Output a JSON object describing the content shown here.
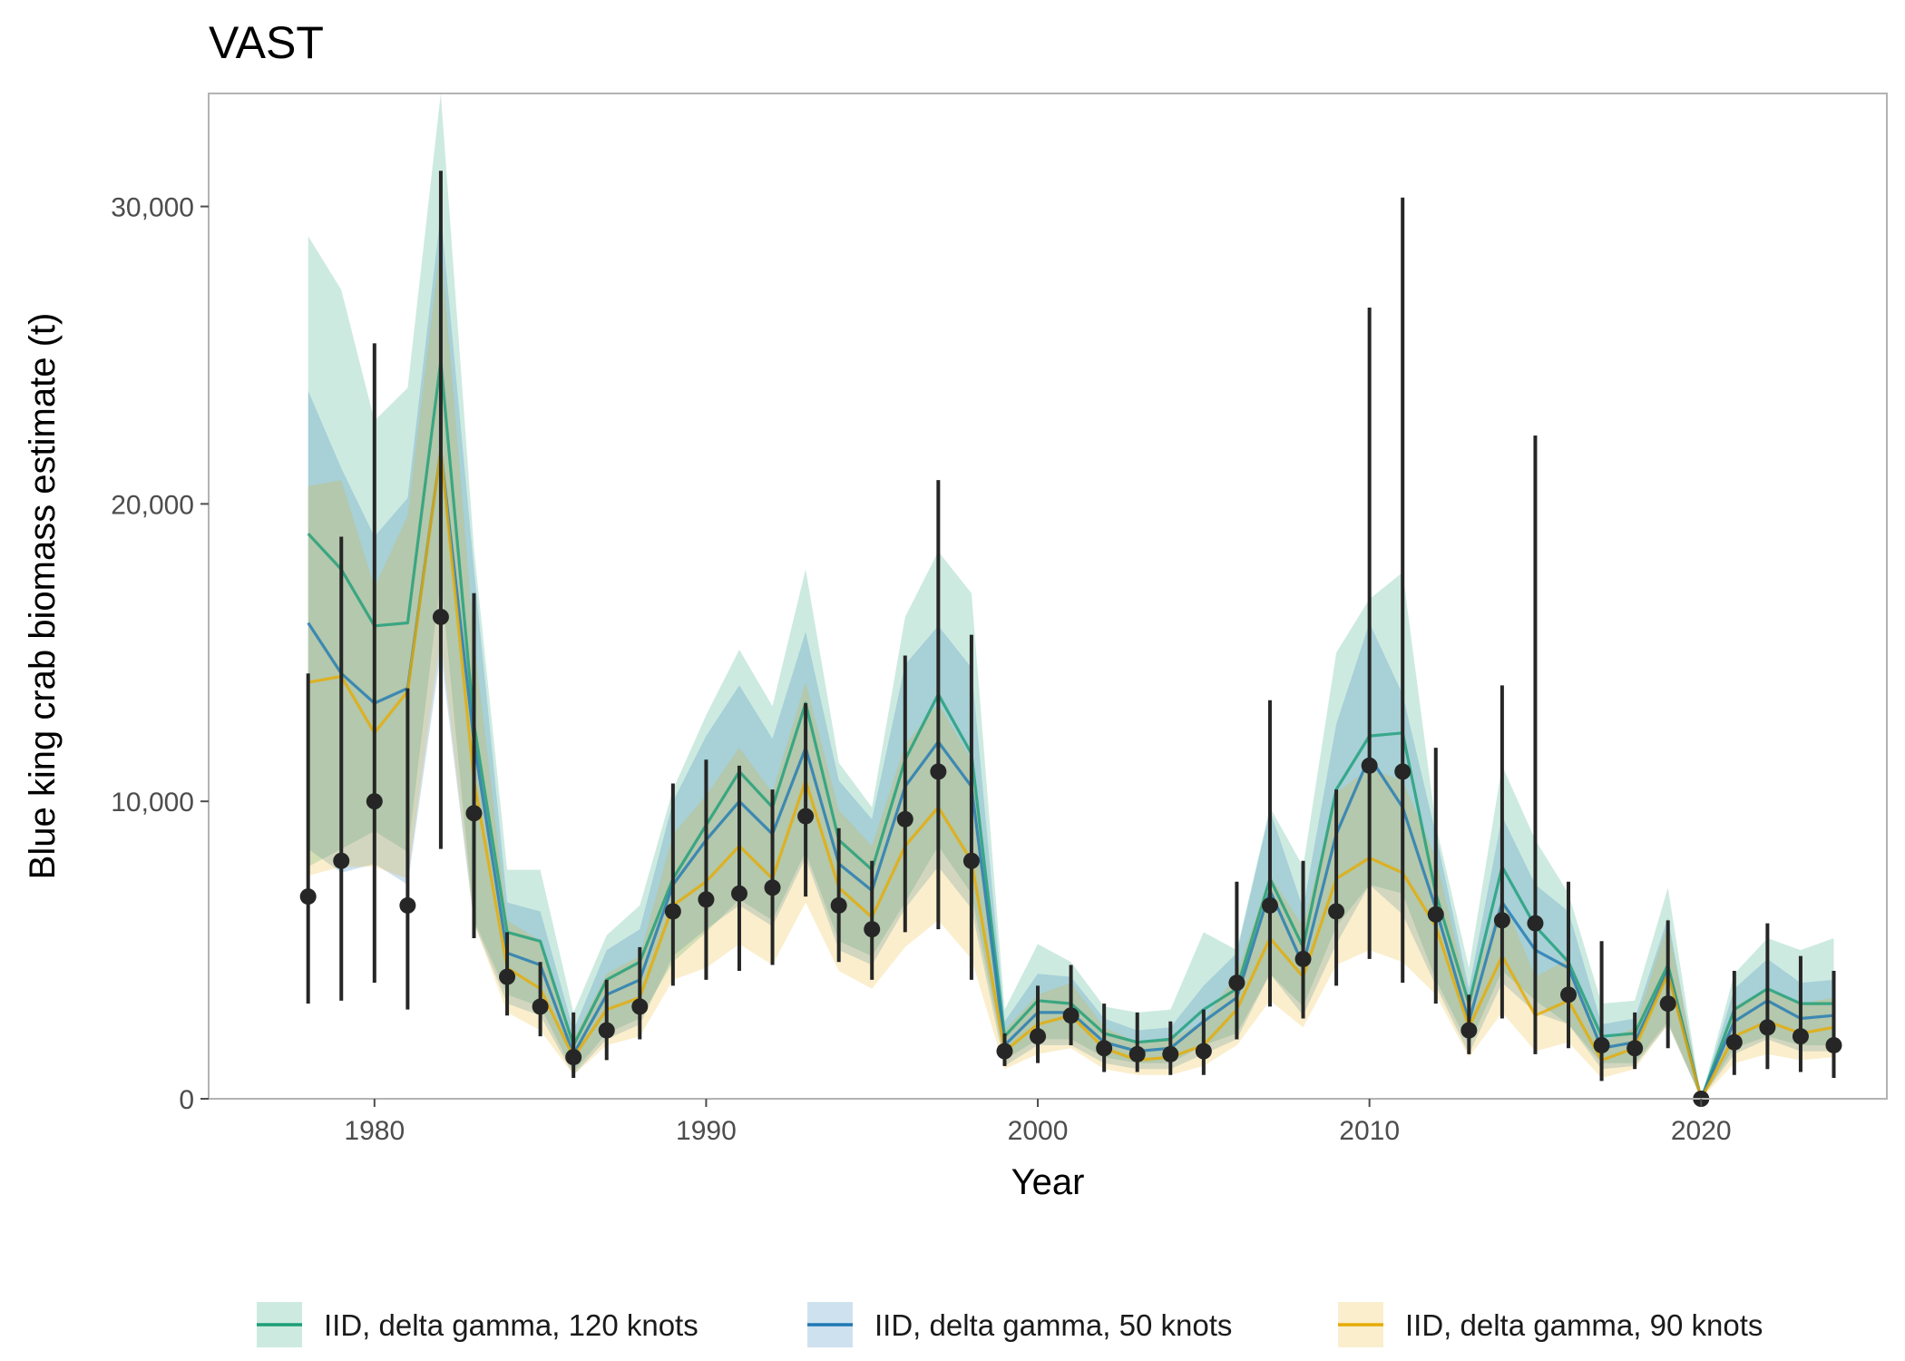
{
  "chart_data": {
    "type": "line",
    "title": "VAST",
    "xlabel": "Year",
    "ylabel": "Blue king crab biomass estimate (t)",
    "xlim": [
      1975.0,
      2025.6
    ],
    "ylim": [
      0,
      33800
    ],
    "x_ticks": [
      1980,
      1990,
      2000,
      2010,
      2020
    ],
    "x_tick_labels": [
      "1980",
      "1990",
      "2000",
      "2010",
      "2020"
    ],
    "y_ticks": [
      0,
      10000,
      20000,
      30000
    ],
    "y_tick_labels": [
      "0",
      "10,000",
      "20,000",
      "30,000"
    ],
    "grid": false,
    "legend_position": "bottom",
    "years": [
      1978,
      1979,
      1980,
      1981,
      1982,
      1983,
      1984,
      1985,
      1986,
      1987,
      1988,
      1989,
      1990,
      1991,
      1992,
      1993,
      1994,
      1995,
      1996,
      1997,
      1998,
      1999,
      2000,
      2001,
      2002,
      2003,
      2004,
      2005,
      2006,
      2007,
      2008,
      2009,
      2010,
      2011,
      2012,
      2013,
      2014,
      2015,
      2016,
      2017,
      2018,
      2019,
      2020,
      2021,
      2022,
      2023,
      2024
    ],
    "series": [
      {
        "name": "IID, delta gamma, 120 knots",
        "color": "#1b9e77",
        "values": [
          19000,
          17800,
          15900,
          16000,
          24800,
          12600,
          5600,
          5300,
          1800,
          4000,
          4600,
          7400,
          9200,
          11000,
          9800,
          13300,
          8700,
          7700,
          11400,
          13600,
          11600,
          2100,
          3300,
          3200,
          2200,
          1900,
          2000,
          3000,
          3700,
          7400,
          5100,
          10400,
          12200,
          12300,
          6900,
          3200,
          7800,
          5800,
          4600,
          2100,
          2200,
          4500,
          0,
          3000,
          3700,
          3200,
          3200
        ],
        "lower": [
          7800,
          8400,
          9000,
          8300,
          17500,
          6000,
          3500,
          3100,
          900,
          2200,
          2700,
          4600,
          5600,
          6700,
          6000,
          8300,
          5300,
          4800,
          6600,
          8500,
          6900,
          1300,
          2000,
          2000,
          1400,
          1200,
          1200,
          1800,
          2200,
          4200,
          3100,
          5800,
          7200,
          6900,
          4000,
          1800,
          4300,
          3300,
          2500,
          1200,
          1200,
          2600,
          0,
          1700,
          2100,
          1800,
          1800
        ],
        "upper": [
          29000,
          27200,
          22800,
          23900,
          33800,
          18500,
          7700,
          7700,
          2900,
          5500,
          6500,
          10400,
          12900,
          15100,
          13200,
          17800,
          11300,
          9800,
          16200,
          18400,
          17000,
          3000,
          5200,
          4600,
          3100,
          2900,
          3000,
          5600,
          5000,
          9800,
          7800,
          15000,
          16800,
          17700,
          9200,
          4400,
          11200,
          8700,
          6900,
          3200,
          3300,
          7100,
          0,
          4200,
          5400,
          5000,
          5400
        ]
      },
      {
        "name": "IID, delta gamma, 50 knots",
        "color": "#1f78b4",
        "values": [
          16000,
          14300,
          13300,
          13800,
          21800,
          12000,
          4900,
          4500,
          1500,
          3500,
          4000,
          7200,
          8700,
          10000,
          8900,
          11800,
          7900,
          7000,
          10500,
          12000,
          10500,
          1800,
          2900,
          2900,
          1900,
          1600,
          1700,
          2600,
          3400,
          7000,
          4500,
          8900,
          11500,
          9800,
          6400,
          2600,
          6600,
          5000,
          4400,
          1700,
          1900,
          4300,
          0,
          2600,
          3300,
          2700,
          2800
        ],
        "lower": [
          8400,
          7600,
          7900,
          7200,
          15000,
          5900,
          3200,
          2800,
          800,
          2000,
          2500,
          4800,
          5700,
          6500,
          5800,
          8100,
          5000,
          4500,
          6400,
          7800,
          6400,
          1100,
          1800,
          1800,
          1200,
          1000,
          1000,
          1500,
          2000,
          4200,
          2800,
          5200,
          7200,
          6200,
          3800,
          1500,
          3900,
          2900,
          2500,
          1000,
          1100,
          2500,
          0,
          1500,
          2000,
          1600,
          1600
        ],
        "upper": [
          23800,
          21200,
          18900,
          20200,
          29800,
          17800,
          6600,
          6300,
          2300,
          5000,
          5700,
          10000,
          12200,
          13900,
          12100,
          15700,
          10700,
          9400,
          14600,
          15900,
          14500,
          2600,
          4200,
          4100,
          2700,
          2300,
          2400,
          3800,
          4900,
          9700,
          6400,
          12600,
          16000,
          13600,
          8900,
          3700,
          9500,
          7200,
          6300,
          2500,
          2700,
          6100,
          0,
          3700,
          4700,
          3900,
          4000
        ]
      },
      {
        "name": "IID, delta gamma, 90 knots",
        "color": "#e6ab02",
        "values": [
          14000,
          14200,
          12300,
          13700,
          21800,
          10700,
          4400,
          3700,
          1400,
          3000,
          3400,
          6500,
          7300,
          8500,
          7400,
          10700,
          7100,
          6100,
          8500,
          9800,
          8000,
          1600,
          2500,
          2800,
          1700,
          1300,
          1400,
          1800,
          3000,
          5400,
          4100,
          7400,
          8100,
          7600,
          5800,
          2400,
          4800,
          2800,
          3300,
          1300,
          1700,
          4200,
          0,
          2100,
          2600,
          2200,
          2400
        ],
        "lower": [
          7500,
          7800,
          7800,
          7400,
          15500,
          5900,
          2900,
          2300,
          800,
          1800,
          2100,
          4000,
          4400,
          5200,
          4500,
          6600,
          4300,
          3700,
          5100,
          6000,
          4700,
          1000,
          1500,
          1700,
          1000,
          800,
          800,
          1100,
          1800,
          3300,
          2400,
          4500,
          5000,
          4600,
          3500,
          1400,
          2900,
          1600,
          1900,
          700,
          1000,
          2500,
          0,
          1200,
          1500,
          1300,
          1400
        ],
        "upper": [
          20600,
          20800,
          17200,
          19600,
          28800,
          15400,
          6000,
          5300,
          2000,
          4200,
          4800,
          8900,
          10200,
          11800,
          10300,
          14000,
          9700,
          8500,
          11900,
          13300,
          11400,
          2300,
          3500,
          3900,
          2400,
          1900,
          2000,
          2600,
          4200,
          7500,
          5800,
          10300,
          11100,
          10700,
          8100,
          3400,
          6800,
          4100,
          4700,
          1900,
          2400,
          5900,
          0,
          3100,
          3700,
          3200,
          3400
        ]
      }
    ],
    "points": {
      "name": "",
      "color": "#262626",
      "values": [
        6800,
        8000,
        10000,
        6500,
        16200,
        9600,
        4100,
        3100,
        1400,
        2300,
        3100,
        6300,
        6700,
        6900,
        7100,
        9500,
        6500,
        5700,
        9400,
        11000,
        8000,
        1600,
        2100,
        2800,
        1700,
        1500,
        1500,
        1600,
        3900,
        6500,
        4700,
        6300,
        11200,
        11000,
        6200,
        2300,
        6000,
        5900,
        3500,
        1800,
        1700,
        3200,
        0,
        1900,
        2400,
        2100,
        1800
      ],
      "lower": [
        3200,
        3300,
        3900,
        3000,
        8400,
        5400,
        2800,
        2100,
        700,
        1300,
        2000,
        3800,
        4000,
        4300,
        4500,
        6800,
        4600,
        4000,
        5600,
        5700,
        4000,
        1100,
        1200,
        1800,
        900,
        900,
        800,
        800,
        2000,
        3100,
        2700,
        3800,
        4700,
        3900,
        3200,
        1500,
        2700,
        1500,
        1700,
        600,
        1000,
        1700,
        0,
        800,
        1000,
        900,
        700
      ],
      "upper": [
        14300,
        18900,
        25400,
        13800,
        31200,
        17000,
        5600,
        4600,
        2900,
        4000,
        5100,
        10600,
        11400,
        11200,
        10400,
        13300,
        9100,
        8000,
        14900,
        20800,
        15600,
        2200,
        3800,
        4500,
        3200,
        2900,
        2600,
        3000,
        7300,
        13400,
        8000,
        10400,
        26600,
        30300,
        11800,
        3500,
        13900,
        22300,
        7300,
        5300,
        2900,
        6000,
        0,
        4300,
        5900,
        4800,
        4300
      ]
    }
  }
}
